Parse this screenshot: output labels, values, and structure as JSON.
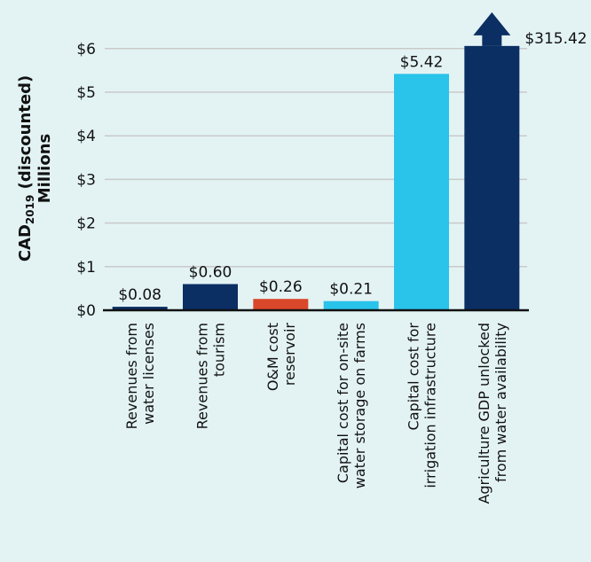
{
  "chart_data": {
    "type": "bar",
    "ylabel_lines": [
      "CAD2019 (discounted)",
      "Millions"
    ],
    "ylabel_main": "CAD",
    "ylabel_sub": "2019",
    "ylabel_rest": " (discounted)",
    "ylabel_line2": "Millions",
    "ylim": [
      0,
      6
    ],
    "yticks": [
      0,
      1,
      2,
      3,
      4,
      5,
      6
    ],
    "ytick_labels": [
      "$0",
      "$1",
      "$2",
      "$3",
      "$4",
      "$5",
      "$6"
    ],
    "grid": true,
    "categories": [
      [
        "Revenues from",
        "water licenses"
      ],
      [
        "Revenues from",
        "tourism"
      ],
      [
        "O&M cost",
        "reservoir"
      ],
      [
        "Capital cost for on-site",
        "water storage on farms"
      ],
      [
        "Capital cost for",
        "irrigation infrastructure"
      ],
      [
        "Agriculture GDP unlocked",
        "from water availability"
      ]
    ],
    "values": [
      0.08,
      0.6,
      0.26,
      0.21,
      5.42,
      315.42
    ],
    "value_labels": [
      "$0.08",
      "$0.60",
      "$0.26",
      "$0.21",
      "$5.42",
      "$315.42"
    ],
    "colors": [
      "#0b2f63",
      "#0b2f63",
      "#d9482a",
      "#2ac3ea",
      "#2ac3ea",
      "#0b2f63"
    ],
    "truncated_bar_index": 5
  }
}
